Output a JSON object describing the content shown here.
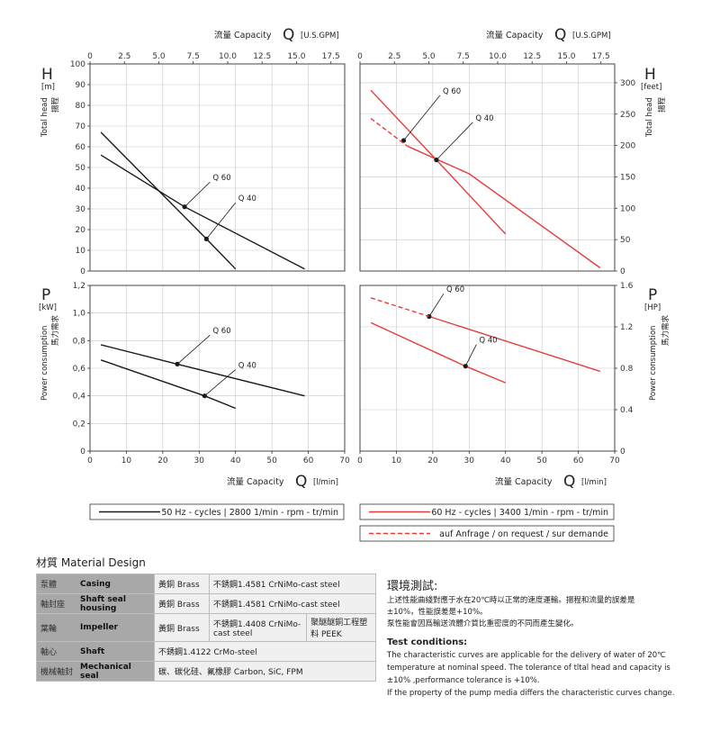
{
  "header": {
    "capacity_us": "流量 Capacity",
    "q_symbol": "Q",
    "unit_gpm": "[U.S.GPM]",
    "capacity_l": "流量 Capacity",
    "unit_lmin": "[l/min]"
  },
  "axes": {
    "h_symbol": "H",
    "h_unit_m": "[m]",
    "h_unit_feet": "[feet]",
    "head_label": "Total head",
    "head_zh": "揚程",
    "p_symbol": "P",
    "p_unit_kw": "[kW]",
    "p_unit_hp": "[HP]",
    "power_label": "Power consumption",
    "power_zh": "馬力需求"
  },
  "chart_data": [
    {
      "id": "head-50hz",
      "type": "line",
      "x_ticks": [
        "0",
        "10",
        "20",
        "30",
        "40",
        "50",
        "60",
        "70"
      ],
      "top_ticks": [
        "0",
        "2.5",
        "5.0",
        "7.5",
        "10.0",
        "12.5",
        "15.0",
        "17.5"
      ],
      "xlim": [
        0,
        70
      ],
      "ylim": [
        0,
        100
      ],
      "y_ticks": [
        "0",
        "10",
        "20",
        "30",
        "40",
        "50",
        "60",
        "70",
        "80",
        "90",
        "100"
      ],
      "series": [
        {
          "name": "Q 60",
          "color": "#1a1a1a",
          "dashed": false,
          "x": [
            3,
            26,
            59
          ],
          "y": [
            56,
            31,
            1
          ],
          "marker": [
            26,
            31
          ]
        },
        {
          "name": "Q 40",
          "color": "#1a1a1a",
          "dashed": false,
          "x": [
            3,
            32,
            40
          ],
          "y": [
            67,
            15.5,
            1
          ],
          "marker": [
            32,
            15.5
          ]
        }
      ],
      "labels": [
        {
          "text": "Q 60",
          "at": [
            26,
            31
          ],
          "tip": [
            33,
            43
          ]
        },
        {
          "text": "Q 40",
          "at": [
            32,
            15.5
          ],
          "tip": [
            40,
            33
          ]
        }
      ]
    },
    {
      "id": "head-60hz",
      "type": "line",
      "x_ticks": [
        "0",
        "10",
        "20",
        "30",
        "40",
        "50",
        "60",
        "70"
      ],
      "top_ticks": [
        "0",
        "2.5",
        "5.0",
        "7.5",
        "10.0",
        "12.5",
        "15.0",
        "17.5"
      ],
      "xlim": [
        0,
        70
      ],
      "ylim": [
        0,
        330
      ],
      "y_ticks": [
        "0",
        "50",
        "100",
        "150",
        "200",
        "250",
        "300"
      ],
      "series": [
        {
          "name": "Q 60",
          "color": "#e63c3c",
          "dashed": false,
          "x": [
            13,
            30,
            66
          ],
          "y": [
            199,
            155,
            5
          ],
          "marker": [
            12,
            208
          ]
        },
        {
          "name": "Q 60 (on request)",
          "color": "#e63c3c",
          "dashed": true,
          "x": [
            3,
            13
          ],
          "y": [
            243,
            199
          ],
          "marker": null
        },
        {
          "name": "Q 40",
          "color": "#e63c3c",
          "dashed": false,
          "x": [
            3,
            21,
            40
          ],
          "y": [
            288,
            177,
            59
          ],
          "marker": [
            21,
            177
          ]
        }
      ],
      "labels": [
        {
          "text": "Q 60",
          "at": [
            12,
            208
          ],
          "tip": [
            22,
            280
          ]
        },
        {
          "text": "Q 40",
          "at": [
            21,
            177
          ],
          "tip": [
            31,
            237
          ]
        }
      ]
    },
    {
      "id": "power-50hz",
      "type": "line",
      "x_ticks": [
        "0",
        "10",
        "20",
        "30",
        "40",
        "50",
        "60",
        "70"
      ],
      "xlim": [
        0,
        70
      ],
      "ylim": [
        0,
        1.2
      ],
      "y_ticks": [
        "0",
        "0,2",
        "0,4",
        "0,6",
        "0,8",
        "1,0",
        "1,2"
      ],
      "series": [
        {
          "name": "Q 60",
          "color": "#1a1a1a",
          "dashed": false,
          "x": [
            3,
            24,
            59
          ],
          "y": [
            0.77,
            0.63,
            0.4
          ],
          "marker": [
            24,
            0.63
          ]
        },
        {
          "name": "Q 40",
          "color": "#1a1a1a",
          "dashed": false,
          "x": [
            3,
            31.5,
            40
          ],
          "y": [
            0.66,
            0.4,
            0.31
          ],
          "marker": [
            31.5,
            0.4
          ]
        }
      ],
      "labels": [
        {
          "text": "Q 60",
          "at": [
            24,
            0.63
          ],
          "tip": [
            33,
            0.84
          ]
        },
        {
          "text": "Q 40",
          "at": [
            31.5,
            0.4
          ],
          "tip": [
            40,
            0.59
          ]
        }
      ]
    },
    {
      "id": "power-60hz",
      "type": "line",
      "x_ticks": [
        "0",
        "10",
        "20",
        "30",
        "40",
        "50",
        "60",
        "70"
      ],
      "xlim": [
        0,
        70
      ],
      "ylim": [
        0,
        1.6
      ],
      "y_ticks": [
        "0",
        "0.4",
        "0.8",
        "1.2",
        "1.6"
      ],
      "series": [
        {
          "name": "Q 60",
          "color": "#e63c3c",
          "dashed": false,
          "x": [
            19,
            66
          ],
          "y": [
            1.3,
            0.77
          ],
          "marker": [
            19,
            1.3
          ]
        },
        {
          "name": "Q 60 (on request)",
          "color": "#e63c3c",
          "dashed": true,
          "x": [
            3,
            19
          ],
          "y": [
            1.48,
            1.3
          ],
          "marker": null
        },
        {
          "name": "Q 40",
          "color": "#e63c3c",
          "dashed": false,
          "x": [
            3,
            29,
            40
          ],
          "y": [
            1.24,
            0.82,
            0.66
          ],
          "marker": [
            29,
            0.82
          ]
        }
      ],
      "labels": [
        {
          "text": "Q 60",
          "at": [
            19,
            1.3
          ],
          "tip": [
            23,
            1.52
          ]
        },
        {
          "text": "Q 40",
          "at": [
            29,
            0.82
          ],
          "tip": [
            32,
            1.03
          ]
        }
      ]
    }
  ],
  "legend": {
    "hz50": "50 Hz - cycles | 2800 1/min - rpm - tr/min",
    "hz60": "60 Hz - cycles | 3400 1/min - rpm - tr/min",
    "request": "auf Anfrage / on request / sur demande",
    "color_50": "#1a1a1a",
    "color_60": "#e63c3c"
  },
  "materials": {
    "title": "材質  Material Design",
    "rows": [
      {
        "zh": "泵體",
        "en": "Casing",
        "values": [
          "黃銅   Brass",
          "不銹鋼1.4581  CrNiMo-cast steel"
        ]
      },
      {
        "zh": "軸封座",
        "en": "Shaft seal housing",
        "values": [
          "黃銅   Brass",
          "不銹鋼1.4581  CrNiMo-cast steel"
        ]
      },
      {
        "zh": "葉輪",
        "en": "Impeller",
        "values": [
          "黃銅   Brass",
          "不銹鋼1.4408 CrNiMo-cast steel",
          "聚醚醚銅工程塑料 PEEK"
        ]
      },
      {
        "zh": "軸心",
        "en": "Shaft",
        "values": [
          "不銹鋼1.4122  CrMo-steel"
        ]
      },
      {
        "zh": "機械軸封",
        "en": "Mechanical seal",
        "values": [
          "碳、碳化硅、氟橡膠  Carbon, SiC, FPM"
        ]
      }
    ]
  },
  "test": {
    "zh_title": "環境測試:",
    "zh_lines": [
      "上述性能曲綫對應于水在20℃時以正常的速度運輸。揚程和流量的誤差是",
      "±10%，性能誤差是+10%。",
      "泵性能會因爲輸送流體介質比重密度的不同而產生變化。"
    ],
    "en_title": "Test conditions:",
    "en_lines": [
      "The characteristic curves are applicable for the delivery of water of 20℃",
      "temperature at nominal speed. The tolerance of tltal head and capacity is",
      "±10% ,performance tolerance is +10%.",
      "If the property of the pump media differs the characteristic curves change."
    ]
  }
}
